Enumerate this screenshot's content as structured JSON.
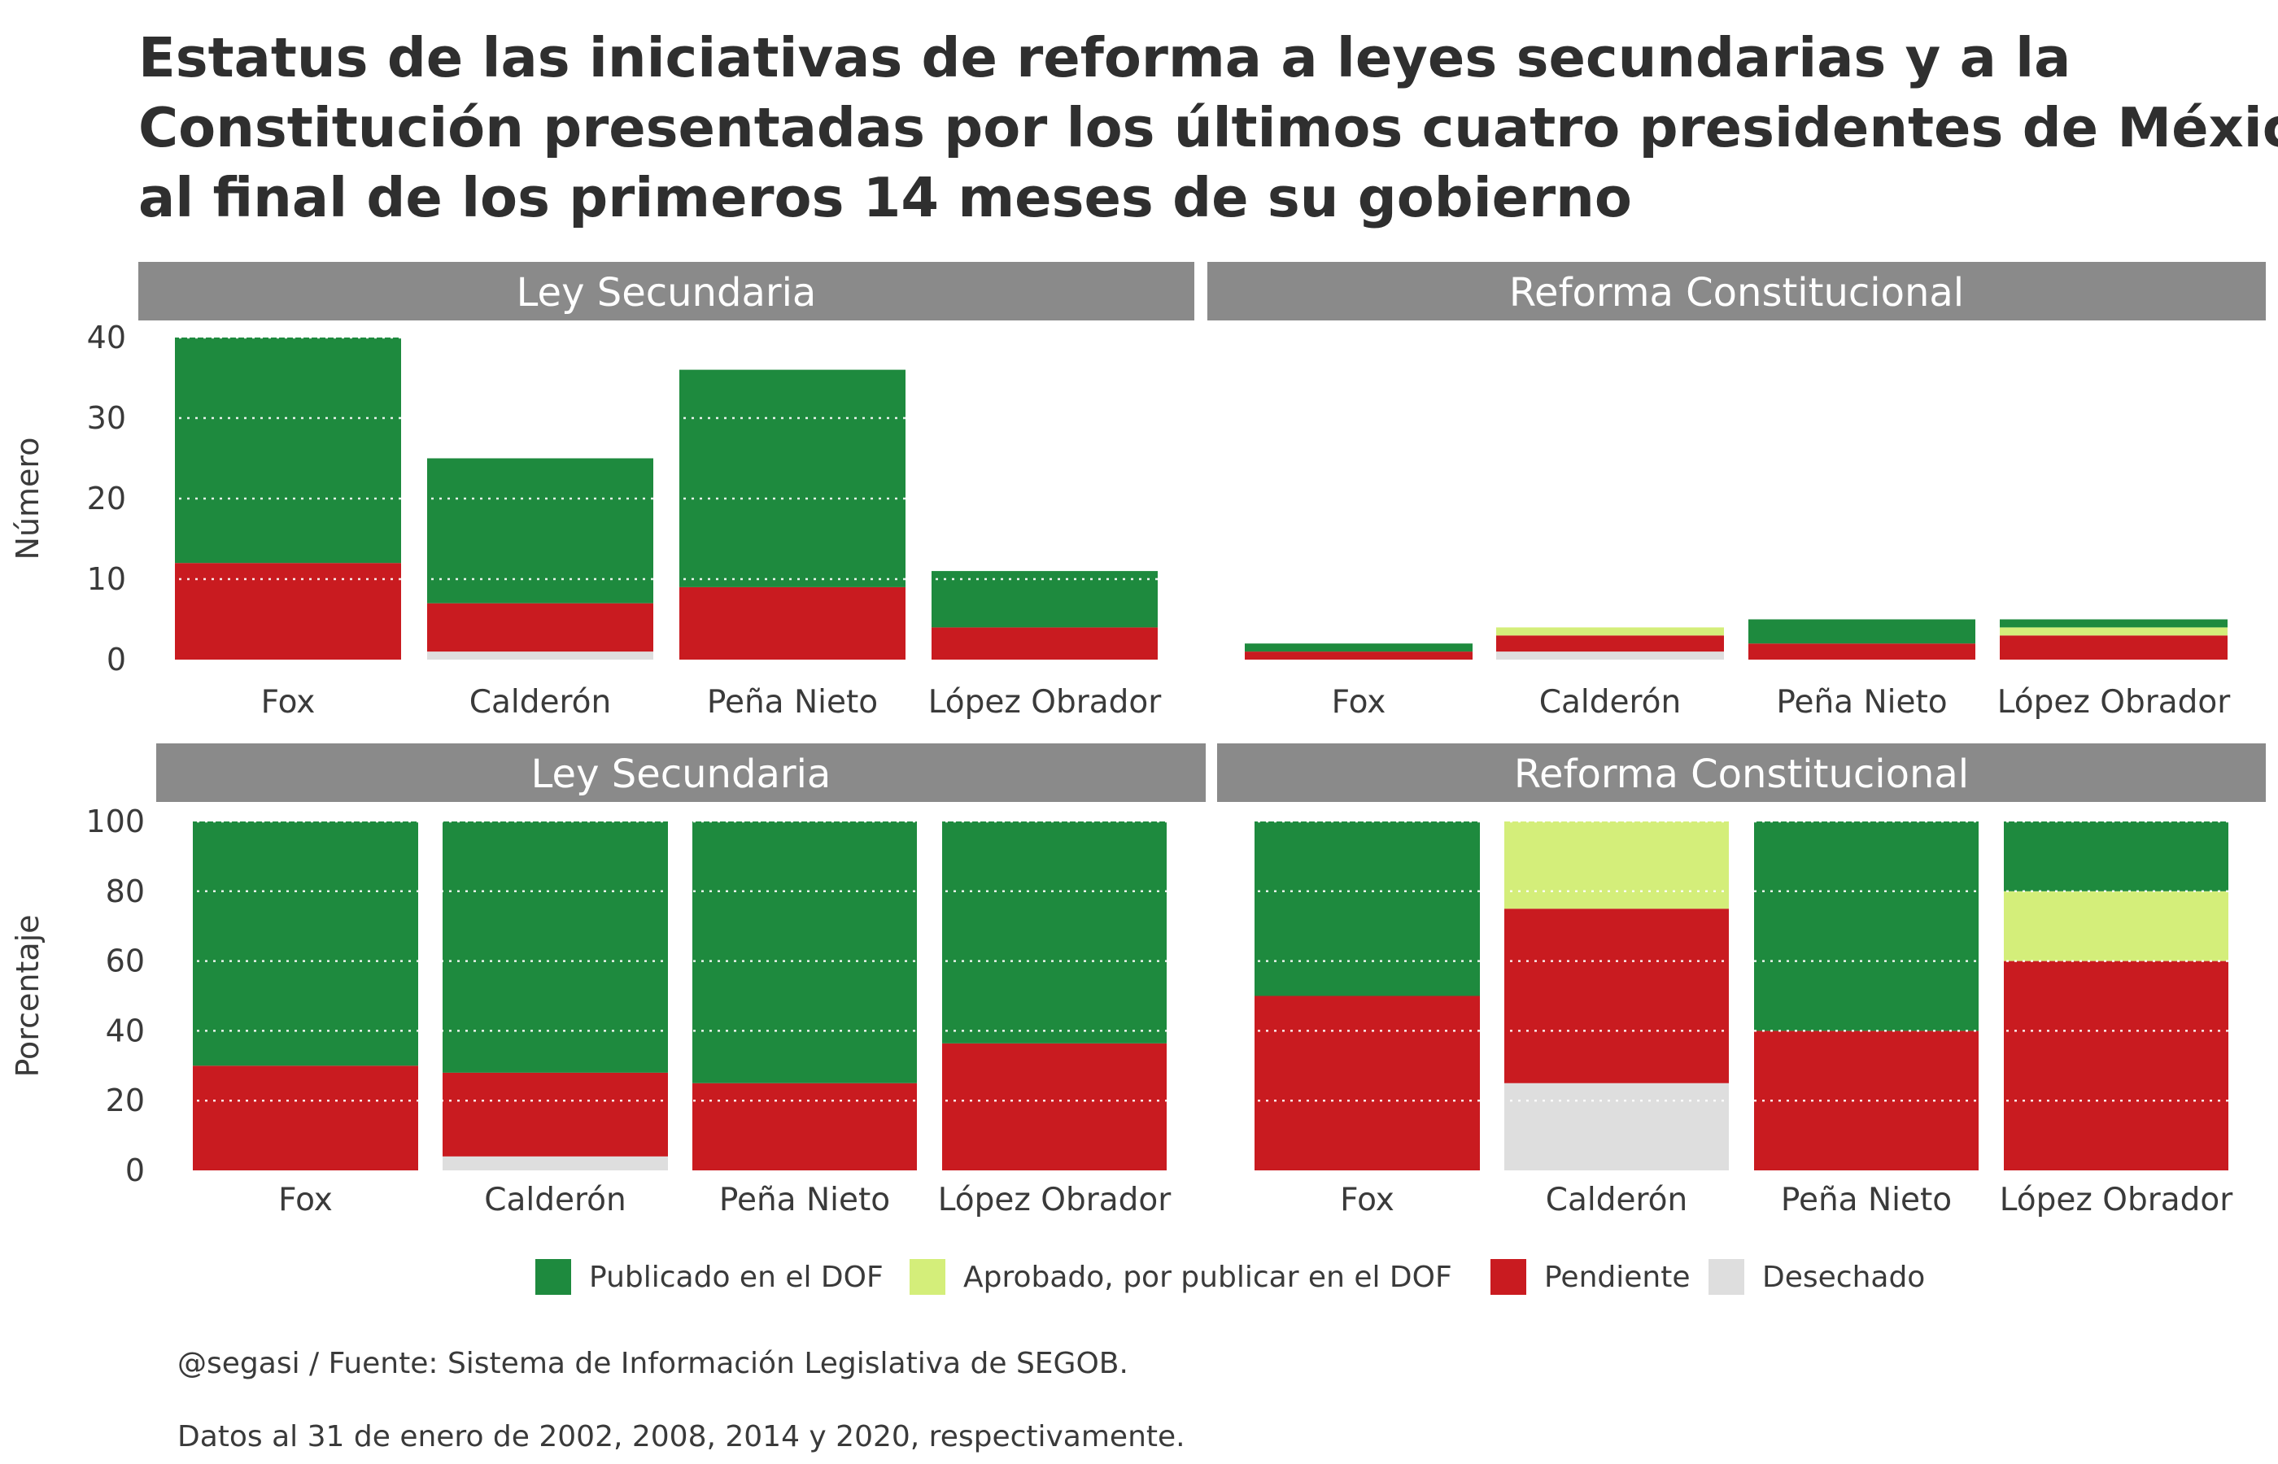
{
  "title": {
    "line1": "Estatus de las iniciativas de reforma a leyes secundarias y a la",
    "line2": "Constitución presentadas por los últimos cuatro presidentes de México,",
    "line3": "al final de los primeros 14 meses de su gobierno"
  },
  "legend": {
    "items": [
      {
        "label": "Publicado en el DOF",
        "color": "#1e8a3e"
      },
      {
        "label": "Aprobado, por publicar en el DOF",
        "color": "#d4ee7a"
      },
      {
        "label": "Pendiente",
        "color": "#c91b20"
      },
      {
        "label": "Desechado",
        "color": "#dedede"
      }
    ]
  },
  "caption": {
    "source": "@segasi / Fuente: Sistema de Información Legislativa de SEGOB.",
    "note": "Datos al 31 de enero de 2002, 2008, 2014 y 2020, respectivamente."
  },
  "chart_data": [
    {
      "type": "bar",
      "stacked": true,
      "ylabel": "Número",
      "ylim": [
        0,
        40
      ],
      "yticks": [
        0,
        10,
        20,
        30,
        40
      ],
      "panels": [
        {
          "strip": "Ley Secundaria",
          "categories": [
            "Fox",
            "Calderón",
            "Peña Nieto",
            "López Obrador"
          ],
          "series": [
            {
              "name": "Desechado",
              "color": "#dedede",
              "values": [
                0,
                1,
                0,
                0
              ]
            },
            {
              "name": "Pendiente",
              "color": "#c91b20",
              "values": [
                12,
                6,
                9,
                4
              ]
            },
            {
              "name": "Aprobado, por publicar en el DOF",
              "color": "#d4ee7a",
              "values": [
                0,
                0,
                0,
                0
              ]
            },
            {
              "name": "Publicado en el DOF",
              "color": "#1e8a3e",
              "values": [
                28,
                18,
                27,
                7
              ]
            }
          ]
        },
        {
          "strip": "Reforma Constitucional",
          "categories": [
            "Fox",
            "Calderón",
            "Peña Nieto",
            "López Obrador"
          ],
          "series": [
            {
              "name": "Desechado",
              "color": "#dedede",
              "values": [
                0,
                1,
                0,
                0
              ]
            },
            {
              "name": "Pendiente",
              "color": "#c91b20",
              "values": [
                1,
                2,
                2,
                3
              ]
            },
            {
              "name": "Aprobado, por publicar en el DOF",
              "color": "#d4ee7a",
              "values": [
                0,
                1,
                0,
                1
              ]
            },
            {
              "name": "Publicado en el DOF",
              "color": "#1e8a3e",
              "values": [
                1,
                0,
                3,
                1
              ]
            }
          ]
        }
      ]
    },
    {
      "type": "bar",
      "stacked": true,
      "ylabel": "Porcentaje",
      "ylim": [
        0,
        100
      ],
      "yticks": [
        0,
        20,
        40,
        60,
        80,
        100
      ],
      "panels": [
        {
          "strip": "Ley Secundaria",
          "categories": [
            "Fox",
            "Calderón",
            "Peña Nieto",
            "López Obrador"
          ],
          "series": [
            {
              "name": "Desechado",
              "color": "#dedede",
              "values": [
                0,
                4,
                0,
                0
              ]
            },
            {
              "name": "Pendiente",
              "color": "#c91b20",
              "values": [
                30,
                24,
                25,
                36.4
              ]
            },
            {
              "name": "Aprobado, por publicar en el DOF",
              "color": "#d4ee7a",
              "values": [
                0,
                0,
                0,
                0
              ]
            },
            {
              "name": "Publicado en el DOF",
              "color": "#1e8a3e",
              "values": [
                70,
                72,
                75,
                63.6
              ]
            }
          ]
        },
        {
          "strip": "Reforma Constitucional",
          "categories": [
            "Fox",
            "Calderón",
            "Peña Nieto",
            "López Obrador"
          ],
          "series": [
            {
              "name": "Desechado",
              "color": "#dedede",
              "values": [
                0,
                25,
                0,
                0
              ]
            },
            {
              "name": "Pendiente",
              "color": "#c91b20",
              "values": [
                50,
                50,
                40,
                60
              ]
            },
            {
              "name": "Aprobado, por publicar en el DOF",
              "color": "#d4ee7a",
              "values": [
                0,
                25,
                0,
                20
              ]
            },
            {
              "name": "Publicado en el DOF",
              "color": "#1e8a3e",
              "values": [
                50,
                0,
                60,
                20
              ]
            }
          ]
        }
      ]
    }
  ]
}
